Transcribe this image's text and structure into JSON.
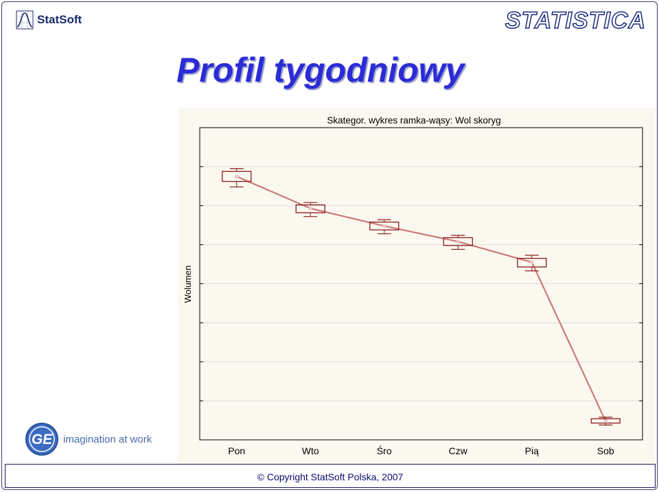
{
  "header": {
    "brand_left": "StatSoft",
    "brand_right": "STATISTICA"
  },
  "slide": {
    "title": "Profil tygodniowy"
  },
  "ge": {
    "tagline": "imagination at work"
  },
  "footer": {
    "copyright": "© Copyright StatSoft Polska, 2007"
  },
  "colors": {
    "title": "#2b2bd8",
    "box": "#8b1a1a",
    "line": "#c97a7a",
    "frame": "#1a1a5e"
  },
  "chart_data": {
    "type": "box",
    "title": "Skategor. wykres ramka-wąsy: Wol skoryg",
    "xlabel": "",
    "ylabel": "Wolumen",
    "categories": [
      "Pon",
      "Wto",
      "Śro",
      "Czw",
      "Pią",
      "Sob"
    ],
    "ylim": [
      0,
      8
    ],
    "grid": true,
    "boxes": [
      {
        "category": "Pon",
        "mean": 6.75,
        "q1": 6.62,
        "q3": 6.88,
        "min": 6.48,
        "max": 6.95
      },
      {
        "category": "Wto",
        "mean": 5.93,
        "q1": 5.82,
        "q3": 6.02,
        "min": 5.72,
        "max": 6.08
      },
      {
        "category": "Śro",
        "mean": 5.48,
        "q1": 5.38,
        "q3": 5.58,
        "min": 5.28,
        "max": 5.64
      },
      {
        "category": "Czw",
        "mean": 5.08,
        "q1": 4.98,
        "q3": 5.18,
        "min": 4.88,
        "max": 5.24
      },
      {
        "category": "Pią",
        "mean": 4.55,
        "q1": 4.43,
        "q3": 4.65,
        "min": 4.33,
        "max": 4.73
      },
      {
        "category": "Sob",
        "mean": 0.48,
        "q1": 0.43,
        "q3": 0.54,
        "min": 0.38,
        "max": 0.58
      }
    ]
  }
}
